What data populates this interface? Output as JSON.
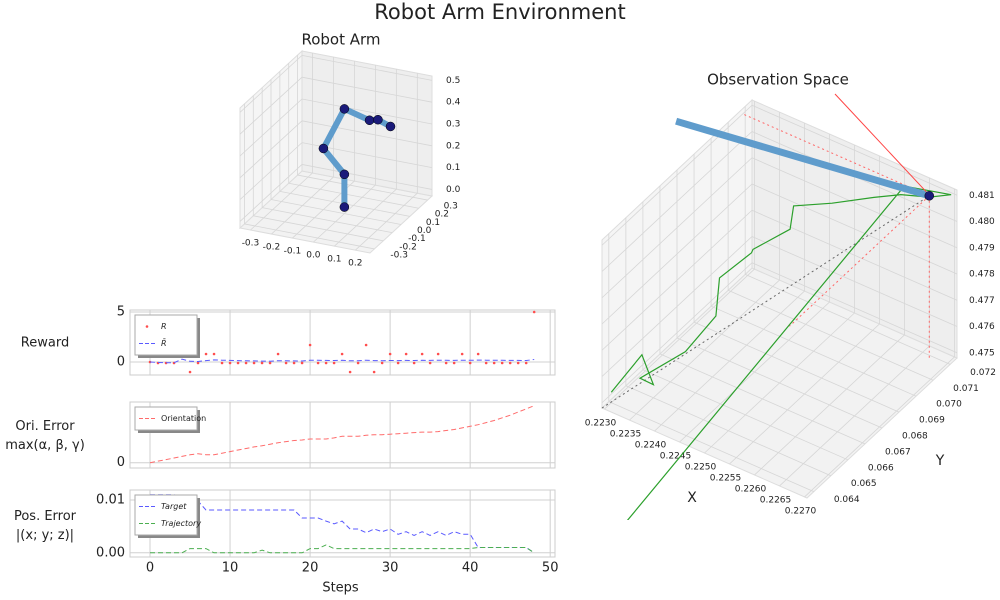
{
  "title": "Robot Arm Environment",
  "chart_data": [
    {
      "type": "arm3d",
      "title": "Robot Arm",
      "xlim": [
        -0.35,
        0.27
      ],
      "ylim": [
        -0.35,
        0.35
      ],
      "zlim": [
        -0.03,
        0.52
      ],
      "xticks": [
        -0.3,
        -0.2,
        -0.1,
        {
          "value": 0,
          "label": "0.0"
        },
        0.1,
        0.2
      ],
      "yticks": [
        -0.3,
        -0.2,
        -0.1,
        {
          "value": 0,
          "label": "0.0"
        },
        0.1,
        0.2,
        0.3
      ],
      "zticks": [
        {
          "value": 0,
          "label": "0.0"
        },
        0.1,
        0.2,
        0.3,
        0.4,
        0.5
      ],
      "link_color": "#5f9ccc",
      "joint_color": "#1a1a7a",
      "joints": {
        "x": [
          0,
          0,
          -0.1,
          0,
          0.12,
          0.16,
          0.22
        ],
        "y": [
          0,
          0,
          0,
          0,
          0,
          0,
          0
        ],
        "z": [
          0,
          0.15,
          0.25,
          0.45,
          0.42,
          0.43,
          0.41
        ]
      }
    },
    {
      "type": "traj3d",
      "title": "Observation Space",
      "xlabel": "X",
      "ylabel": "Y",
      "xlim": [
        0.22295,
        0.22705
      ],
      "ylim": [
        0.0636,
        0.0724
      ],
      "zlim": [
        0.4748,
        0.4812
      ],
      "xticks": [
        {
          "value": 0.223,
          "label": "0.2230"
        },
        0.2235,
        {
          "value": 0.224,
          "label": "0.2240"
        },
        0.2245,
        {
          "value": 0.225,
          "label": "0.2250"
        },
        0.2255,
        {
          "value": 0.226,
          "label": "0.2260"
        },
        0.2265,
        {
          "value": 0.227,
          "label": "0.2270"
        }
      ],
      "yticks": [
        0.064,
        0.065,
        0.066,
        0.067,
        0.068,
        0.069,
        {
          "value": 0.07,
          "label": "0.070"
        },
        0.071,
        0.072
      ],
      "zticks": [
        0.475,
        0.476,
        0.477,
        0.478,
        0.479,
        {
          "value": 0.48,
          "label": "0.480"
        },
        0.481
      ],
      "trajectory": {
        "color": "#2ca02c",
        "x": [
          0.223,
          0.2231,
          0.2235,
          0.2233,
          0.2238,
          0.224,
          0.2238,
          0.2241,
          0.2243,
          0.2247,
          0.2246,
          0.2252,
          0.2258,
          0.2262,
          0.2267,
          0.227,
          0.2262,
          0.224
        ],
        "y": [
          0.064,
          0.0655,
          0.065,
          0.0648,
          0.066,
          0.0672,
          0.068,
          0.069,
          0.0685,
          0.0695,
          0.07,
          0.0705,
          0.0712,
          0.0716,
          0.0718,
          0.0722,
          0.0718,
          0.06
        ],
        "z": [
          0.4752,
          0.4758,
          0.4753,
          0.4755,
          0.4762,
          0.477,
          0.4778,
          0.4784,
          0.479,
          0.4795,
          0.48,
          0.4803,
          0.4806,
          0.4808,
          0.481,
          0.4811,
          0.481,
          0.472
        ]
      },
      "arm": {
        "color": "#5f9ccc",
        "x": [
          0.2267,
          0.2215
        ],
        "y": [
          0.0718,
          0.0722
        ],
        "z": [
          0.48105,
          0.4793
        ]
      },
      "target": {
        "color": "#1a1a7a",
        "x": 0.2267,
        "y": 0.0718,
        "z": 0.48105
      },
      "annotation_color": "#ff4444"
    },
    {
      "type": "line",
      "ylabel": [
        "Reward"
      ],
      "xlim": [
        -2.5,
        50.6
      ],
      "xticks": [
        0,
        10,
        20,
        30,
        40,
        50
      ],
      "ylim": [
        -1.3,
        5.2
      ],
      "yticks": [
        0,
        5
      ],
      "grid": true,
      "x": [
        0,
        1,
        2,
        3,
        4,
        5,
        6,
        7,
        8,
        9,
        10,
        11,
        12,
        13,
        14,
        15,
        16,
        17,
        18,
        19,
        20,
        21,
        22,
        23,
        24,
        25,
        26,
        27,
        28,
        29,
        30,
        31,
        32,
        33,
        34,
        35,
        36,
        37,
        38,
        39,
        40,
        41,
        42,
        43,
        44,
        45,
        46,
        47,
        48
      ],
      "series": [
        {
          "name": "R",
          "color": "#ff4d4d",
          "marker": "dot",
          "values": [
            0,
            -0.1,
            -0.1,
            -0.1,
            1.7,
            -1,
            -0.1,
            0.8,
            0.8,
            -0.1,
            -0.1,
            -0.1,
            -0.1,
            -0.1,
            -0.1,
            -0.1,
            0.8,
            -0.1,
            -0.1,
            -0.1,
            1.7,
            -0.1,
            -0.1,
            -0.1,
            0.8,
            -1,
            -0.1,
            1.7,
            -1,
            -0.1,
            0.8,
            -0.1,
            0.8,
            -0.1,
            0.8,
            -0.1,
            0.8,
            -0.1,
            -0.1,
            0.8,
            -0.1,
            0.8,
            -0.1,
            -0.1,
            -0.1,
            -0.1,
            -0.1,
            -0.1,
            5
          ]
        },
        {
          "name": "R̄",
          "color": "#5a5aff",
          "marker": "dash",
          "values": [
            0,
            -0.05,
            -0.07,
            -0.07,
            0.28,
            0.07,
            0.05,
            0.14,
            0.21,
            0.18,
            0.16,
            0.14,
            0.12,
            0.11,
            0.09,
            0.08,
            0.13,
            0.12,
            0.11,
            0.1,
            0.18,
            0.17,
            0.16,
            0.15,
            0.17,
            0.12,
            0.12,
            0.18,
            0.14,
            0.13,
            0.15,
            0.14,
            0.16,
            0.15,
            0.17,
            0.16,
            0.18,
            0.17,
            0.16,
            0.18,
            0.17,
            0.19,
            0.18,
            0.17,
            0.17,
            0.16,
            0.16,
            0.15,
            0.25
          ]
        }
      ]
    },
    {
      "type": "line",
      "ylabel": [
        "Ori. Error",
        "max(α, β, γ)"
      ],
      "xlim": [
        -2.5,
        50.6
      ],
      "xticks": [
        0,
        10,
        20,
        30,
        40,
        50
      ],
      "ylim": [
        -0.1,
        1.15
      ],
      "yticks": [
        0
      ],
      "grid": true,
      "x": [
        0,
        1,
        2,
        3,
        4,
        5,
        6,
        7,
        8,
        9,
        10,
        11,
        12,
        13,
        14,
        15,
        16,
        17,
        18,
        19,
        20,
        21,
        22,
        23,
        24,
        25,
        26,
        27,
        28,
        29,
        30,
        31,
        32,
        33,
        34,
        35,
        36,
        37,
        38,
        39,
        40,
        41,
        42,
        43,
        44,
        45,
        46,
        47,
        48
      ],
      "series": [
        {
          "name": "Orientation",
          "color": "#ff6b6b",
          "marker": "dash",
          "values": [
            0,
            0.03,
            0.06,
            0.09,
            0.12,
            0.15,
            0.17,
            0.15,
            0.15,
            0.18,
            0.21,
            0.24,
            0.27,
            0.3,
            0.32,
            0.35,
            0.38,
            0.4,
            0.42,
            0.43,
            0.45,
            0.45,
            0.45,
            0.47,
            0.5,
            0.5,
            0.5,
            0.52,
            0.53,
            0.53,
            0.54,
            0.55,
            0.56,
            0.57,
            0.58,
            0.58,
            0.59,
            0.61,
            0.63,
            0.66,
            0.69,
            0.72,
            0.76,
            0.8,
            0.85,
            0.9,
            0.96,
            1.02,
            1.08
          ]
        }
      ]
    },
    {
      "type": "line",
      "ylabel": [
        "Pos. Error",
        "|(x; y; z)|"
      ],
      "xlabel": "Steps",
      "xlim": [
        -2.5,
        50.6
      ],
      "xticks": [
        0,
        10,
        20,
        30,
        40,
        50
      ],
      "ylim": [
        -0.0008,
        0.0119
      ],
      "yticks": [
        {
          "value": 0,
          "label": "0.00"
        },
        0.01
      ],
      "grid": true,
      "x": [
        0,
        1,
        2,
        3,
        4,
        5,
        6,
        7,
        8,
        9,
        10,
        11,
        12,
        13,
        14,
        15,
        16,
        17,
        18,
        19,
        20,
        21,
        22,
        23,
        24,
        25,
        26,
        27,
        28,
        29,
        30,
        31,
        32,
        33,
        34,
        35,
        36,
        37,
        38,
        39,
        40,
        41,
        42,
        43,
        44,
        45,
        46,
        47,
        48
      ],
      "series": [
        {
          "name": "Target",
          "color": "#5a5aff",
          "marker": "dash",
          "values": [
            0.011,
            0.011,
            0.011,
            0.011,
            0.0105,
            0.01,
            0.0098,
            0.0081,
            0.0081,
            0.0081,
            0.0081,
            0.0081,
            0.0081,
            0.0081,
            0.0081,
            0.0081,
            0.0081,
            0.0081,
            0.0081,
            0.0066,
            0.0066,
            0.0066,
            0.006,
            0.0055,
            0.006,
            0.0045,
            0.0045,
            0.0038,
            0.0045,
            0.004,
            0.0045,
            0.0035,
            0.004,
            0.0033,
            0.004,
            0.0033,
            0.004,
            0.0033,
            0.004,
            0.0035,
            0.0035,
            0.001,
            0.001,
            0.001,
            0.001,
            0.001,
            0.001,
            0.001,
            0
          ]
        },
        {
          "name": "Trajectory",
          "color": "#4caf50",
          "marker": "dash",
          "values": [
            0,
            0,
            0,
            0,
            0,
            0.0008,
            0.0008,
            0.0008,
            0,
            0,
            0,
            0,
            0,
            0,
            0.0005,
            0,
            0,
            0,
            0,
            0,
            0.0008,
            0.0008,
            0.0015,
            0.0008,
            0.0008,
            0.0008,
            0.0008,
            0.0008,
            0.0008,
            0.0008,
            0.0008,
            0.0008,
            0.0008,
            0.0008,
            0.0008,
            0.0008,
            0.0008,
            0.0008,
            0.0008,
            0.0008,
            0.0008,
            0.001,
            0.001,
            0.001,
            0.001,
            0.001,
            0.001,
            0.001,
            0
          ]
        }
      ]
    }
  ]
}
